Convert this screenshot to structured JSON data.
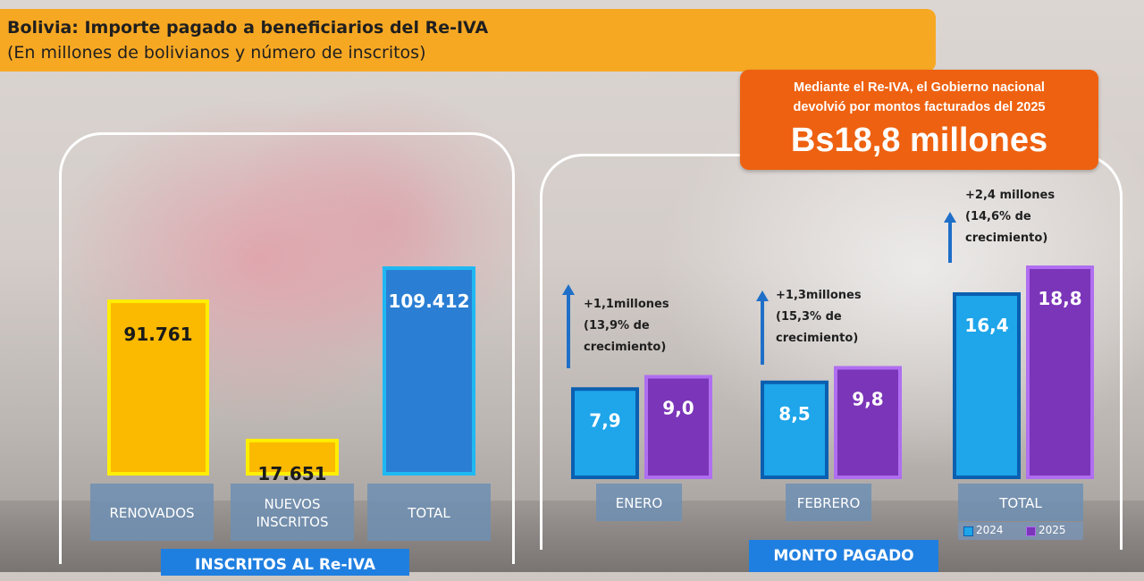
{
  "header": {
    "title": "Bolivia: Importe pagado a beneficiarios del Re-IVA",
    "subtitle": "(En millones de bolivianos y número de inscritos)"
  },
  "callout": {
    "line1": "Mediante el Re-IVA, el Gobierno nacional",
    "line2": "devolvió por montos facturados del 2025",
    "amount": "Bs18,8 millones"
  },
  "colors": {
    "header": "#f7a823",
    "callout": "#ee6110",
    "yellow_bar": "#fbb900",
    "yellow_border": "#ffee00",
    "blue_total": "#2a7fd4",
    "bar_2024": "#1ea5ea",
    "bar_2025": "#7b35b8",
    "label_box": "#6f8fb3",
    "footer": "#1f7fe0"
  },
  "chart_data": [
    {
      "type": "bar",
      "title": "INSCRITOS AL Re-IVA",
      "categories": [
        "RENOVADOS",
        "NUEVOS INSCRITOS",
        "TOTAL"
      ],
      "values": [
        91761,
        17651,
        109412
      ],
      "value_labels": [
        "91.761",
        "17.651",
        "109.412"
      ]
    },
    {
      "type": "bar",
      "title": "MONTO PAGADO",
      "categories": [
        "ENERO",
        "FEBRERO",
        "TOTAL"
      ],
      "series": [
        {
          "name": "2024",
          "values": [
            7.9,
            8.5,
            16.4
          ],
          "labels": [
            "7,9",
            "8,5",
            "16,4"
          ]
        },
        {
          "name": "2025",
          "values": [
            9.0,
            9.8,
            18.8
          ],
          "labels": [
            "9,0",
            "9,8",
            "18,8"
          ]
        }
      ],
      "annotations": [
        [
          "+1,1millones",
          "(13,9% de",
          "crecimiento)"
        ],
        [
          "+1,3millones",
          "(15,3% de",
          "crecimiento)"
        ],
        [
          "+2,4 millones",
          "(14,6% de",
          "crecimiento)"
        ]
      ],
      "legend": "bottom-right"
    }
  ]
}
